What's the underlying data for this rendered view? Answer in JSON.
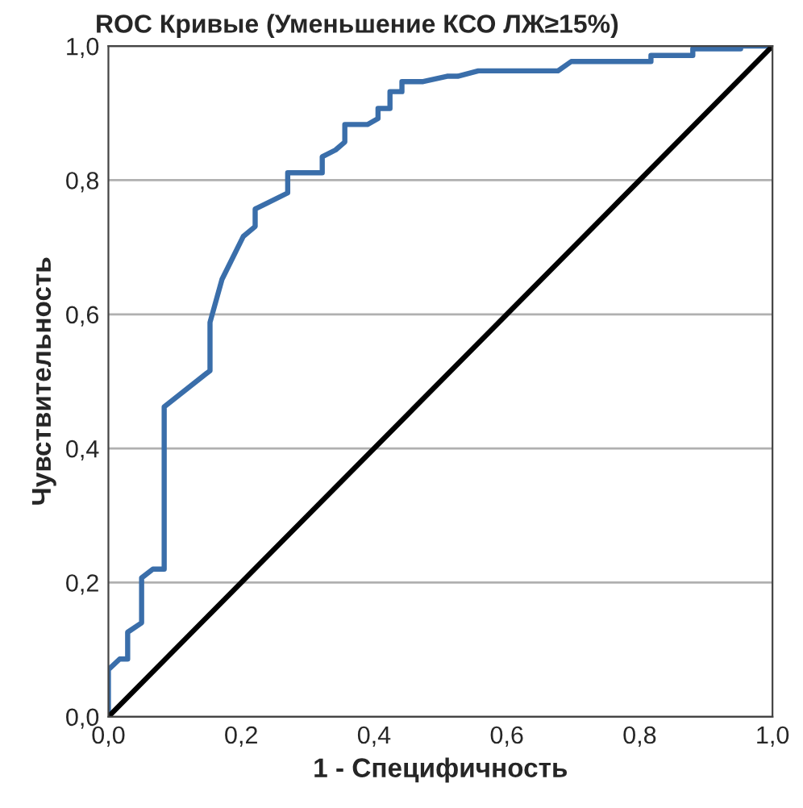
{
  "chart_data": {
    "type": "line",
    "title": "ROC Кривые (Уменьшение КСО ЛЖ≥15%)",
    "xlabel": "1 - Специфичность",
    "ylabel": "Чувствительность",
    "series": [
      {
        "color": "#3a6eaa",
        "x": [
          0,
          0,
          0.017,
          0.029,
          0.029,
          0.05,
          0.05,
          0.067,
          0.084,
          0.084,
          0.153,
          0.153,
          0.171,
          0.203,
          0.221,
          0.221,
          0.27,
          0.27,
          0.322,
          0.322,
          0.342,
          0.356,
          0.356,
          0.39,
          0.406,
          0.406,
          0.424,
          0.424,
          0.442,
          0.442,
          0.474,
          0.51,
          0.526,
          0.557,
          0.677,
          0.697,
          0.817,
          0.817,
          0.88,
          0.88,
          0.952,
          0.952,
          1.0
        ],
        "values": [
          0,
          0.07,
          0.086,
          0.086,
          0.126,
          0.14,
          0.207,
          0.22,
          0.22,
          0.462,
          0.516,
          0.588,
          0.652,
          0.716,
          0.731,
          0.757,
          0.781,
          0.811,
          0.811,
          0.835,
          0.845,
          0.857,
          0.883,
          0.883,
          0.892,
          0.907,
          0.907,
          0.932,
          0.932,
          0.947,
          0.947,
          0.955,
          0.955,
          0.963,
          0.963,
          0.977,
          0.977,
          0.986,
          0.986,
          0.996,
          0.996,
          1.0,
          1.0
        ]
      },
      {
        "color": "#000000",
        "x": [
          0,
          1.0
        ],
        "values": [
          0,
          1.0
        ]
      }
    ],
    "xlim": [
      0,
      1.0
    ],
    "ylim": [
      0,
      1.0
    ],
    "xticks": [
      {
        "value": 0,
        "label": "0,0"
      },
      {
        "value": 0.2,
        "label": "0,2"
      },
      {
        "value": 0.4,
        "label": "0,4"
      },
      {
        "value": 0.6,
        "label": "0,6"
      },
      {
        "value": 0.8,
        "label": "0,8"
      },
      {
        "value": 1.0,
        "label": "1,0"
      }
    ],
    "yticks": [
      {
        "value": 0,
        "label": "0,0"
      },
      {
        "value": 0.2,
        "label": "0,2"
      },
      {
        "value": 0.4,
        "label": "0,4"
      },
      {
        "value": 0.6,
        "label": "0,6"
      },
      {
        "value": 0.8,
        "label": "0,8"
      },
      {
        "value": 1.0,
        "label": "1,0"
      }
    ],
    "grid": "y"
  }
}
